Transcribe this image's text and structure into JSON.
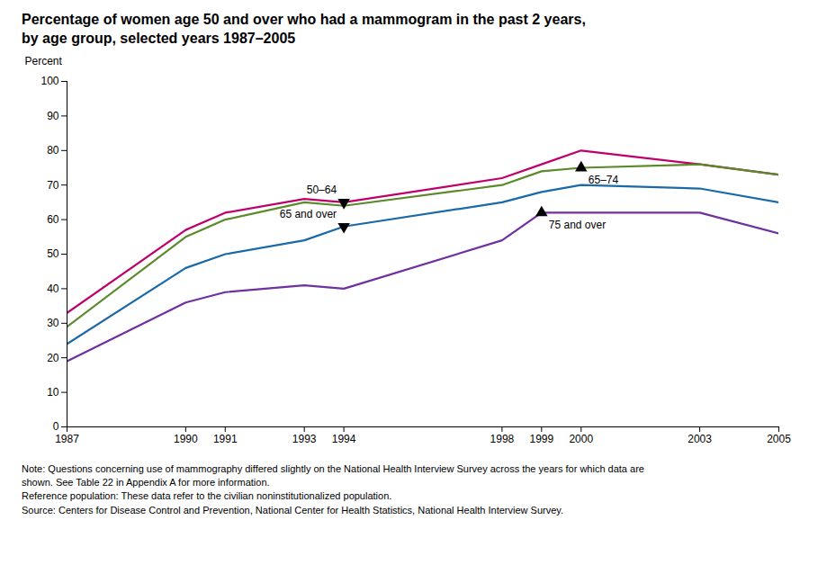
{
  "chart_data": {
    "type": "line",
    "title": "Percentage of women age 50 and over who had a mammogram in the past 2 years, by age group, selected years 1987–2005",
    "y_label": "Percent",
    "x": [
      1987,
      1990,
      1991,
      1993,
      1994,
      1998,
      1999,
      2000,
      2003,
      2005
    ],
    "series": [
      {
        "name": "50–64",
        "color": "#c0006a",
        "values": [
          33,
          57,
          62,
          66,
          65,
          72,
          76,
          80,
          76,
          73
        ]
      },
      {
        "name": "65–74",
        "color": "#5a8a2a",
        "values": [
          29,
          55,
          60,
          65,
          64,
          70,
          74,
          75,
          76,
          73
        ]
      },
      {
        "name": "65 and over",
        "color": "#1a6aaa",
        "values": [
          24,
          46,
          50,
          54,
          58,
          65,
          68,
          70,
          69,
          65
        ]
      },
      {
        "name": "75 and over",
        "color": "#7030a0",
        "values": [
          19,
          36,
          39,
          41,
          40,
          54,
          62,
          62,
          62,
          56
        ]
      }
    ],
    "annotations": [
      {
        "text": "50–64",
        "x": 1994,
        "y": 65,
        "marker": "triangle-down"
      },
      {
        "text": "65 and over",
        "x": 1994,
        "y": 58,
        "marker": "triangle-down"
      },
      {
        "text": "65–74",
        "x": 2000,
        "y": 75,
        "marker": "triangle-up"
      },
      {
        "text": "75 and over",
        "x": 1999,
        "y": 62,
        "marker": "triangle-up"
      }
    ],
    "xlim": [
      1987,
      2005
    ],
    "xticks": [
      1987,
      1990,
      1991,
      1993,
      1994,
      1998,
      1999,
      2000,
      2003,
      2005
    ],
    "ylim": [
      0,
      100
    ],
    "yticks": [
      0,
      10,
      20,
      30,
      40,
      50,
      60,
      70,
      80,
      90,
      100
    ],
    "grid": false,
    "notes": [
      "Note:  Questions concerning use of mammography differed slightly on the National Health Interview Survey across the years for which data are",
      "shown. See Table 22 in Appendix A for more information.",
      "Reference population:  These data refer to the civilian noninstitutionalized population.",
      "Source:  Centers for Disease Control and Prevention, National Center for Health Statistics, National Health Interview Survey."
    ]
  }
}
